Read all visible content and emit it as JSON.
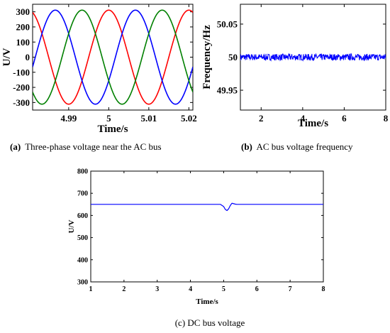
{
  "captions": {
    "a_label": "(a)",
    "a_text": "Three-phase voltage near the AC bus",
    "b_label": "(b)",
    "b_text": "AC bus voltage frequency",
    "c_text": "(c) DC bus voltage"
  },
  "chart_data": [
    {
      "id": "a",
      "type": "line",
      "title": "",
      "xlabel": "Time/s",
      "ylabel": "U/V",
      "xlim": [
        4.981,
        5.021
      ],
      "ylim": [
        -350,
        350
      ],
      "xticks": [
        4.99,
        5,
        5.01,
        5.02
      ],
      "xtick_labels": [
        "4.99",
        "5",
        "5.01",
        "5.02"
      ],
      "yticks": [
        -300,
        -200,
        -100,
        0,
        100,
        200,
        300
      ],
      "ytick_labels": [
        "-300",
        "-200",
        "-100",
        "0",
        "100",
        "200",
        "300"
      ],
      "grid": false,
      "frequency_hz": 50,
      "amplitude": 311,
      "series": [
        {
          "color": "#ff0000",
          "phase_deg": 0
        },
        {
          "color": "#0000ff",
          "phase_deg": -120
        },
        {
          "color": "#008000",
          "phase_deg": 120
        }
      ]
    },
    {
      "id": "b",
      "type": "line",
      "title": "",
      "xlabel": "Time/s",
      "ylabel": "Frequency/Hz",
      "xlim": [
        1,
        8
      ],
      "ylim": [
        49.92,
        50.08
      ],
      "xticks": [
        2,
        4,
        6,
        8
      ],
      "xtick_labels": [
        "2",
        "4",
        "6",
        "8"
      ],
      "yticks": [
        49.95,
        50,
        50.05
      ],
      "ytick_labels": [
        "49.95",
        "50",
        "50.05"
      ],
      "grid": false,
      "series": [
        {
          "color": "#0000ff",
          "mean": 50,
          "noise_amplitude": 0.005
        }
      ]
    },
    {
      "id": "c",
      "type": "line",
      "title": "",
      "xlabel": "Time/s",
      "ylabel": "U/V",
      "xlim": [
        1,
        8
      ],
      "ylim": [
        300,
        800
      ],
      "xticks": [
        1,
        2,
        3,
        4,
        5,
        6,
        7,
        8
      ],
      "xtick_labels": [
        "1",
        "2",
        "3",
        "4",
        "5",
        "6",
        "7",
        "8"
      ],
      "yticks": [
        300,
        400,
        500,
        600,
        700,
        800
      ],
      "ytick_labels": [
        "300",
        "400",
        "500",
        "600",
        "700",
        "800"
      ],
      "grid": false,
      "series": [
        {
          "color": "#0000ff",
          "x": [
            1,
            4.9,
            5.0,
            5.05,
            5.1,
            5.15,
            5.2,
            5.25,
            5.3,
            5.35,
            5.4,
            5.5,
            8
          ],
          "y": [
            650,
            650,
            640,
            627,
            622,
            630,
            645,
            655,
            653,
            651,
            650,
            650,
            650
          ]
        }
      ]
    }
  ]
}
